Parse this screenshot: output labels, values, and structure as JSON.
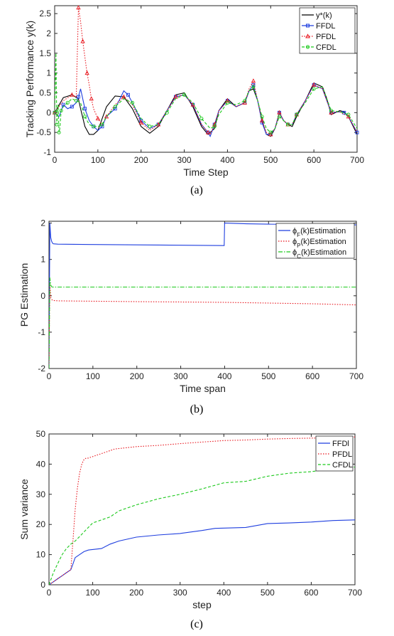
{
  "chart_data": [
    {
      "type": "line",
      "caption": "(a)",
      "xlabel": "Time Step",
      "ylabel": "Tracking Performance y(k)",
      "xlim": [
        0,
        700
      ],
      "ylim": [
        -1,
        2.7
      ],
      "xticks": [
        "0",
        "100",
        "200",
        "300",
        "400",
        "500",
        "600",
        "700"
      ],
      "yticks": [
        "-1",
        "-0.5",
        "0",
        "0.5",
        "1",
        "1.5",
        "2",
        "2.5"
      ],
      "legend_position": "top-right",
      "series": [
        {
          "name": "y*(k)",
          "color": "#000000",
          "style": "solid",
          "x": [
            0,
            20,
            40,
            55,
            60,
            70,
            80,
            90,
            100,
            110,
            120,
            140,
            160,
            180,
            200,
            220,
            240,
            260,
            280,
            300,
            320,
            340,
            355,
            370,
            380,
            400,
            420,
            440,
            450,
            460,
            470,
            480,
            490,
            500,
            510,
            520,
            530,
            540,
            550,
            560,
            580,
            600,
            620,
            630,
            640,
            650,
            660,
            670,
            680,
            700
          ],
          "y": [
            0,
            0.38,
            0.45,
            0.35,
            0.1,
            -0.35,
            -0.55,
            -0.55,
            -0.45,
            -0.15,
            0.15,
            0.42,
            0.4,
            0.1,
            -0.35,
            -0.52,
            -0.35,
            0.05,
            0.45,
            0.5,
            0.15,
            -0.35,
            -0.55,
            -0.4,
            0.05,
            0.35,
            0.15,
            0.25,
            0.55,
            0.6,
            0.3,
            -0.2,
            -0.55,
            -0.6,
            -0.4,
            0,
            -0.2,
            -0.3,
            -0.35,
            -0.1,
            0.3,
            0.75,
            0.65,
            0.35,
            -0.05,
            0,
            0.05,
            0.02,
            -0.1,
            -0.55
          ]
        },
        {
          "name": "FFDL",
          "color": "#1f3fdf",
          "style": "solid",
          "marker": "square",
          "x": [
            0,
            10,
            20,
            30,
            40,
            50,
            55,
            60,
            70,
            80,
            90,
            100,
            110,
            120,
            140,
            160,
            170,
            180,
            200,
            220,
            240,
            260,
            280,
            300,
            320,
            340,
            355,
            360,
            370,
            380,
            400,
            420,
            440,
            450,
            460,
            470,
            480,
            490,
            500,
            510,
            520,
            530,
            540,
            550,
            560,
            580,
            600,
            620,
            640,
            660,
            670,
            680,
            700
          ],
          "y": [
            0,
            -0.1,
            0.2,
            0.1,
            0.15,
            0.25,
            0.4,
            0.6,
            0.1,
            -0.2,
            -0.35,
            -0.45,
            -0.35,
            -0.1,
            0.1,
            0.55,
            0.45,
            0.25,
            -0.2,
            -0.4,
            -0.3,
            0.05,
            0.4,
            0.45,
            0.2,
            -0.3,
            -0.5,
            -0.6,
            -0.3,
            0.05,
            0.3,
            0.15,
            0.25,
            0.55,
            0.7,
            0.3,
            -0.25,
            -0.55,
            -0.55,
            -0.4,
            0,
            -0.2,
            -0.3,
            -0.3,
            -0.05,
            0.3,
            0.7,
            0.6,
            0,
            0.02,
            0,
            -0.1,
            -0.5
          ]
        },
        {
          "name": "PFDL",
          "color": "#e8131b",
          "style": "dotted",
          "marker": "triangle",
          "x": [
            0,
            20,
            40,
            50,
            55,
            60,
            65,
            70,
            75,
            80,
            85,
            90,
            100,
            110,
            120,
            140,
            160,
            180,
            200,
            220,
            240,
            260,
            280,
            300,
            320,
            340,
            355,
            360,
            370,
            380,
            400,
            420,
            440,
            450,
            460,
            470,
            480,
            490,
            500,
            510,
            520,
            530,
            540,
            550,
            560,
            580,
            600,
            620,
            640,
            660,
            680,
            700
          ],
          "y": [
            0,
            0.3,
            0.45,
            0.4,
            2.65,
            2.3,
            1.8,
            1.4,
            1.0,
            0.7,
            0.35,
            0.1,
            -0.15,
            -0.3,
            -0.1,
            0.2,
            0.4,
            0.2,
            -0.25,
            -0.45,
            -0.3,
            0.05,
            0.4,
            0.45,
            0.2,
            -0.3,
            -0.5,
            -0.55,
            -0.3,
            0.05,
            0.3,
            0.15,
            0.25,
            0.6,
            0.8,
            0.3,
            -0.2,
            -0.5,
            -0.55,
            -0.4,
            0,
            -0.2,
            -0.3,
            -0.3,
            -0.05,
            0.3,
            0.7,
            0.6,
            0,
            0.02,
            -0.1,
            -0.5
          ]
        },
        {
          "name": "CFDL",
          "color": "#1cc91c",
          "style": "dashed",
          "marker": "circle",
          "x": [
            0,
            3,
            5,
            8,
            10,
            12,
            15,
            20,
            30,
            40,
            50,
            60,
            70,
            80,
            90,
            100,
            110,
            120,
            140,
            160,
            180,
            200,
            220,
            240,
            260,
            280,
            300,
            320,
            340,
            360,
            370,
            380,
            400,
            420,
            440,
            450,
            460,
            470,
            480,
            490,
            500,
            510,
            520,
            530,
            540,
            550,
            560,
            580,
            600,
            620,
            640,
            660,
            680,
            700
          ],
          "y": [
            0,
            1.5,
            -0.3,
            0.2,
            -0.5,
            -0.4,
            0.05,
            0.15,
            0.25,
            0.35,
            0.3,
            0.25,
            -0.1,
            -0.3,
            -0.35,
            -0.35,
            -0.3,
            -0.1,
            0.15,
            0.35,
            0.25,
            -0.15,
            -0.35,
            -0.3,
            0.0,
            0.35,
            0.45,
            0.25,
            -0.15,
            -0.4,
            -0.35,
            -0.05,
            0.25,
            0.2,
            0.3,
            0.55,
            0.65,
            0.3,
            -0.1,
            -0.4,
            -0.5,
            -0.4,
            -0.1,
            -0.2,
            -0.3,
            -0.3,
            -0.05,
            0.25,
            0.6,
            0.65,
            0.05,
            0.02,
            -0.05,
            -0.4
          ]
        }
      ]
    },
    {
      "type": "line",
      "caption": "(b)",
      "xlabel": "Time span",
      "ylabel": "PG Estimation",
      "xlim": [
        0,
        700
      ],
      "ylim": [
        -2,
        2.05
      ],
      "xticks": [
        "0",
        "100",
        "200",
        "300",
        "400",
        "500",
        "600",
        "700"
      ],
      "yticks": [
        "-2",
        "-1",
        "0",
        "1",
        "2"
      ],
      "legend_position": "top-right",
      "series": [
        {
          "name_prefix": "ϕ",
          "name_sub": "F",
          "name_suffix": "(k)Estimation",
          "color": "#1f3fdf",
          "style": "solid",
          "x": [
            0,
            2,
            4,
            6,
            8,
            10,
            20,
            100,
            200,
            300,
            399,
            400,
            401,
            450,
            500,
            600,
            700
          ],
          "y": [
            -2,
            2.0,
            1.6,
            1.5,
            1.45,
            1.43,
            1.42,
            1.41,
            1.4,
            1.39,
            1.38,
            2.0,
            2.0,
            1.98,
            1.97,
            1.96,
            1.95
          ]
        },
        {
          "name_prefix": "ϕ",
          "name_sub": "P",
          "name_suffix": "(k)Estimation",
          "color": "#e8131b",
          "style": "dotted",
          "x": [
            0,
            2,
            4,
            6,
            8,
            10,
            20,
            100,
            200,
            300,
            400,
            500,
            600,
            700
          ],
          "y": [
            -2,
            0.35,
            -0.05,
            -0.1,
            -0.12,
            -0.13,
            -0.14,
            -0.15,
            -0.16,
            -0.17,
            -0.18,
            -0.2,
            -0.22,
            -0.25
          ]
        },
        {
          "name_prefix": "ϕ",
          "name_sub": "C",
          "name_suffix": "(k)Estimation",
          "color": "#1cc91c",
          "style": "dashdot",
          "x": [
            0,
            2,
            4,
            6,
            8,
            10,
            100,
            200,
            300,
            400,
            500,
            600,
            700
          ],
          "y": [
            -2,
            0.5,
            0.3,
            0.25,
            0.24,
            0.24,
            0.24,
            0.24,
            0.24,
            0.24,
            0.24,
            0.24,
            0.24
          ]
        }
      ]
    },
    {
      "type": "line",
      "caption": "(c)",
      "xlabel": "step",
      "ylabel": "Sum variance",
      "xlim": [
        0,
        700
      ],
      "ylim": [
        0,
        50
      ],
      "xticks": [
        "0",
        "100",
        "200",
        "300",
        "400",
        "500",
        "600",
        "700"
      ],
      "yticks": [
        "0",
        "10",
        "20",
        "30",
        "40",
        "50"
      ],
      "legend_position": "top-right",
      "series": [
        {
          "name": "FFDl",
          "color": "#1f3fdf",
          "style": "solid",
          "x": [
            0,
            10,
            20,
            30,
            40,
            50,
            55,
            60,
            70,
            80,
            90,
            100,
            120,
            140,
            160,
            200,
            250,
            300,
            350,
            380,
            450,
            500,
            550,
            600,
            650,
            700
          ],
          "y": [
            0,
            1,
            2,
            3,
            4,
            5,
            7,
            9,
            10,
            11,
            11.5,
            11.7,
            12,
            13.5,
            14.5,
            15.8,
            16.5,
            17,
            18,
            18.7,
            19,
            20.3,
            20.5,
            20.8,
            21.3,
            21.5
          ]
        },
        {
          "name": "PFDL",
          "color": "#e8131b",
          "style": "dotted",
          "x": [
            0,
            10,
            20,
            30,
            40,
            50,
            55,
            60,
            65,
            70,
            75,
            80,
            85,
            90,
            100,
            120,
            150,
            200,
            250,
            300,
            350,
            400,
            450,
            500,
            550,
            600,
            650,
            700
          ],
          "y": [
            0,
            1,
            2,
            3,
            4,
            5,
            15,
            25,
            32,
            37,
            40,
            41.5,
            42,
            42,
            42.5,
            43.5,
            45,
            45.8,
            46.2,
            46.8,
            47.3,
            47.8,
            48,
            48.3,
            48.5,
            48.6,
            48.8,
            49
          ]
        },
        {
          "name": "CFDL",
          "color": "#1cc91c",
          "style": "dashed",
          "x": [
            0,
            5,
            10,
            15,
            20,
            30,
            40,
            50,
            60,
            70,
            80,
            90,
            100,
            120,
            140,
            160,
            180,
            200,
            250,
            300,
            350,
            400,
            450,
            500,
            550,
            600,
            650,
            700
          ],
          "y": [
            0,
            2,
            4,
            5.5,
            7,
            10,
            12,
            13.5,
            14.5,
            16,
            17.5,
            19,
            20.5,
            21.5,
            22.5,
            24.5,
            25.5,
            26.5,
            28.5,
            30,
            31.8,
            33.8,
            34.3,
            36,
            37,
            37.5,
            38.5,
            39
          ]
        }
      ]
    }
  ]
}
